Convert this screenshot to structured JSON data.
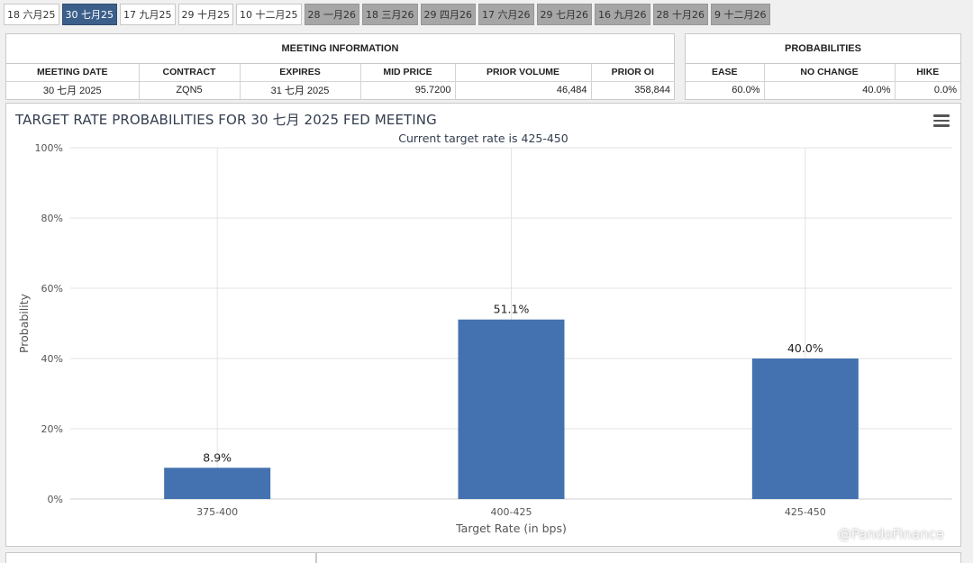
{
  "tabs": [
    {
      "label": "18 六月25",
      "state": "past"
    },
    {
      "label": "30 七月25",
      "state": "active"
    },
    {
      "label": "17 九月25",
      "state": "past"
    },
    {
      "label": "29 十月25",
      "state": "past"
    },
    {
      "label": "10 十二月25",
      "state": "past"
    },
    {
      "label": "28 一月26",
      "state": "future"
    },
    {
      "label": "18 三月26",
      "state": "future"
    },
    {
      "label": "29 四月26",
      "state": "future"
    },
    {
      "label": "17 六月26",
      "state": "future"
    },
    {
      "label": "29 七月26",
      "state": "future"
    },
    {
      "label": "16 九月26",
      "state": "future"
    },
    {
      "label": "28 十月26",
      "state": "future"
    },
    {
      "label": "9 十二月26",
      "state": "future"
    }
  ],
  "meeting_info": {
    "title": "MEETING INFORMATION",
    "headers": [
      "MEETING DATE",
      "CONTRACT",
      "EXPIRES",
      "MID PRICE",
      "PRIOR VOLUME",
      "PRIOR OI"
    ],
    "row": [
      "30 七月 2025",
      "ZQN5",
      "31 七月 2025",
      "95.7200",
      "46,484",
      "358,844"
    ]
  },
  "probabilities": {
    "title": "PROBABILITIES",
    "headers": [
      "EASE",
      "NO CHANGE",
      "HIKE"
    ],
    "row": [
      "60.0%",
      "40.0%",
      "0.0%"
    ]
  },
  "chart": {
    "title": "TARGET RATE PROBABILITIES FOR 30 七月 2025 FED MEETING",
    "subtitle": "Current target rate is 425-450",
    "watermark": "@PandoFinance",
    "bar_color": "#4472b0"
  },
  "chart_data": {
    "type": "bar",
    "categories": [
      "375-400",
      "400-425",
      "425-450"
    ],
    "values": [
      8.9,
      51.1,
      40.0
    ],
    "data_labels": [
      "8.9%",
      "51.1%",
      "40.0%"
    ],
    "xlabel": "Target Rate (in bps)",
    "ylabel": "Probability",
    "ylim": [
      0,
      100
    ],
    "yticks": [
      "0%",
      "20%",
      "40%",
      "60%",
      "80%",
      "100%"
    ],
    "grid": true
  }
}
